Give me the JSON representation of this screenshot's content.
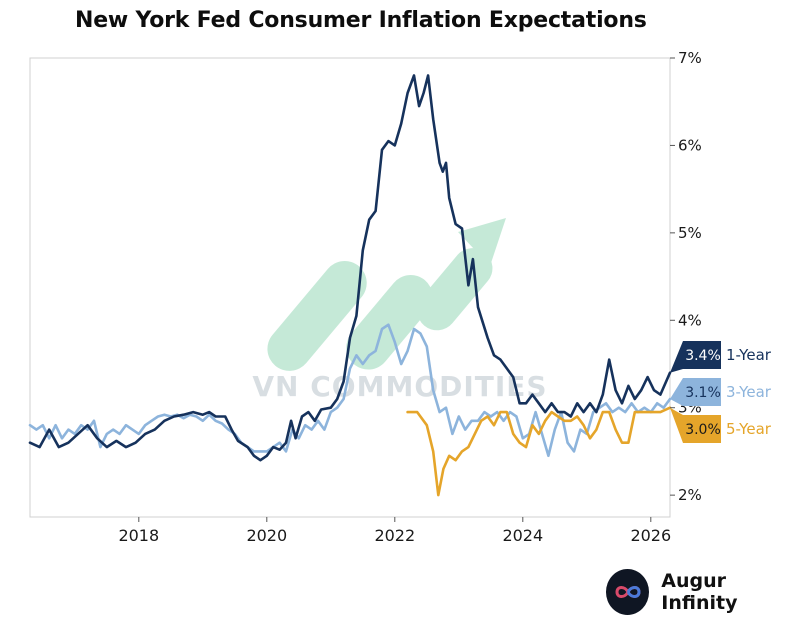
{
  "title": "New York Fed Consumer Inflation Expectations",
  "watermark": "VN COMMODITIES",
  "brand": {
    "name": "Augur Infinity",
    "logo_icon": "infinity-loop-icon"
  },
  "colors": {
    "one_year": "#16325c",
    "three_year": "#8db4dc",
    "five_year": "#e5a52a",
    "arrow": "#7fd0a8"
  },
  "chart_data": {
    "type": "line",
    "title": "New York Fed Consumer Inflation Expectations",
    "xlabel": "",
    "ylabel": "",
    "xlim": [
      2016.3,
      2026.3
    ],
    "ylim": [
      1.75,
      7.0
    ],
    "x_ticks": [
      2018,
      2020,
      2022,
      2024,
      2026
    ],
    "x_tick_labels": [
      "2018",
      "2020",
      "2022",
      "2024",
      "2026"
    ],
    "y_ticks": [
      2,
      3,
      4,
      5,
      6,
      7
    ],
    "y_tick_labels": [
      "2%",
      "3%",
      "4%",
      "5%",
      "6%",
      "7%"
    ],
    "y_axis_side": "right",
    "grid": false,
    "series": [
      {
        "name": "1-Year",
        "end_label": "3.4%",
        "color": "#16325c",
        "points": [
          [
            2016.3,
            2.6
          ],
          [
            2016.45,
            2.55
          ],
          [
            2016.6,
            2.75
          ],
          [
            2016.75,
            2.55
          ],
          [
            2016.9,
            2.6
          ],
          [
            2017.05,
            2.7
          ],
          [
            2017.2,
            2.8
          ],
          [
            2017.35,
            2.65
          ],
          [
            2017.5,
            2.55
          ],
          [
            2017.65,
            2.62
          ],
          [
            2017.8,
            2.55
          ],
          [
            2017.95,
            2.6
          ],
          [
            2018.1,
            2.7
          ],
          [
            2018.25,
            2.75
          ],
          [
            2018.4,
            2.85
          ],
          [
            2018.55,
            2.9
          ],
          [
            2018.7,
            2.92
          ],
          [
            2018.85,
            2.95
          ],
          [
            2019.0,
            2.92
          ],
          [
            2019.1,
            2.95
          ],
          [
            2019.2,
            2.9
          ],
          [
            2019.35,
            2.9
          ],
          [
            2019.45,
            2.75
          ],
          [
            2019.55,
            2.62
          ],
          [
            2019.7,
            2.55
          ],
          [
            2019.8,
            2.45
          ],
          [
            2019.9,
            2.4
          ],
          [
            2020.0,
            2.45
          ],
          [
            2020.1,
            2.55
          ],
          [
            2020.2,
            2.52
          ],
          [
            2020.3,
            2.6
          ],
          [
            2020.38,
            2.85
          ],
          [
            2020.45,
            2.65
          ],
          [
            2020.55,
            2.9
          ],
          [
            2020.65,
            2.95
          ],
          [
            2020.75,
            2.85
          ],
          [
            2020.85,
            2.98
          ],
          [
            2021.0,
            3.0
          ],
          [
            2021.1,
            3.1
          ],
          [
            2021.2,
            3.3
          ],
          [
            2021.3,
            3.8
          ],
          [
            2021.4,
            4.05
          ],
          [
            2021.5,
            4.8
          ],
          [
            2021.6,
            5.15
          ],
          [
            2021.7,
            5.25
          ],
          [
            2021.8,
            5.95
          ],
          [
            2021.9,
            6.05
          ],
          [
            2022.0,
            6.0
          ],
          [
            2022.1,
            6.25
          ],
          [
            2022.2,
            6.6
          ],
          [
            2022.3,
            6.8
          ],
          [
            2022.38,
            6.45
          ],
          [
            2022.45,
            6.6
          ],
          [
            2022.52,
            6.8
          ],
          [
            2022.6,
            6.3
          ],
          [
            2022.7,
            5.8
          ],
          [
            2022.75,
            5.7
          ],
          [
            2022.8,
            5.8
          ],
          [
            2022.85,
            5.4
          ],
          [
            2022.95,
            5.1
          ],
          [
            2023.05,
            5.05
          ],
          [
            2023.15,
            4.4
          ],
          [
            2023.22,
            4.7
          ],
          [
            2023.3,
            4.15
          ],
          [
            2023.45,
            3.8
          ],
          [
            2023.55,
            3.6
          ],
          [
            2023.65,
            3.55
          ],
          [
            2023.75,
            3.45
          ],
          [
            2023.85,
            3.35
          ],
          [
            2023.95,
            3.05
          ],
          [
            2024.05,
            3.05
          ],
          [
            2024.15,
            3.15
          ],
          [
            2024.25,
            3.05
          ],
          [
            2024.35,
            2.95
          ],
          [
            2024.45,
            3.05
          ],
          [
            2024.55,
            2.95
          ],
          [
            2024.65,
            2.95
          ],
          [
            2024.75,
            2.9
          ],
          [
            2024.85,
            3.05
          ],
          [
            2024.95,
            2.95
          ],
          [
            2025.05,
            3.05
          ],
          [
            2025.15,
            2.95
          ],
          [
            2025.25,
            3.15
          ],
          [
            2025.35,
            3.55
          ],
          [
            2025.45,
            3.2
          ],
          [
            2025.55,
            3.05
          ],
          [
            2025.65,
            3.25
          ],
          [
            2025.75,
            3.1
          ],
          [
            2025.85,
            3.2
          ],
          [
            2025.95,
            3.35
          ],
          [
            2026.05,
            3.2
          ],
          [
            2026.15,
            3.15
          ],
          [
            2026.3,
            3.4
          ]
        ]
      },
      {
        "name": "3-Year",
        "end_label": "3.1%",
        "color": "#8db4dc",
        "points": [
          [
            2016.3,
            2.8
          ],
          [
            2016.4,
            2.75
          ],
          [
            2016.5,
            2.8
          ],
          [
            2016.6,
            2.65
          ],
          [
            2016.7,
            2.8
          ],
          [
            2016.8,
            2.65
          ],
          [
            2016.9,
            2.75
          ],
          [
            2017.0,
            2.7
          ],
          [
            2017.1,
            2.8
          ],
          [
            2017.2,
            2.75
          ],
          [
            2017.3,
            2.85
          ],
          [
            2017.4,
            2.55
          ],
          [
            2017.5,
            2.7
          ],
          [
            2017.6,
            2.75
          ],
          [
            2017.7,
            2.7
          ],
          [
            2017.8,
            2.8
          ],
          [
            2017.9,
            2.75
          ],
          [
            2018.0,
            2.7
          ],
          [
            2018.1,
            2.8
          ],
          [
            2018.2,
            2.85
          ],
          [
            2018.3,
            2.9
          ],
          [
            2018.4,
            2.92
          ],
          [
            2018.5,
            2.9
          ],
          [
            2018.6,
            2.92
          ],
          [
            2018.7,
            2.88
          ],
          [
            2018.8,
            2.92
          ],
          [
            2018.9,
            2.9
          ],
          [
            2019.0,
            2.85
          ],
          [
            2019.1,
            2.92
          ],
          [
            2019.2,
            2.85
          ],
          [
            2019.3,
            2.82
          ],
          [
            2019.4,
            2.75
          ],
          [
            2019.5,
            2.7
          ],
          [
            2019.6,
            2.6
          ],
          [
            2019.7,
            2.55
          ],
          [
            2019.8,
            2.5
          ],
          [
            2019.9,
            2.5
          ],
          [
            2020.0,
            2.5
          ],
          [
            2020.1,
            2.55
          ],
          [
            2020.2,
            2.6
          ],
          [
            2020.3,
            2.5
          ],
          [
            2020.4,
            2.75
          ],
          [
            2020.5,
            2.65
          ],
          [
            2020.6,
            2.8
          ],
          [
            2020.7,
            2.75
          ],
          [
            2020.8,
            2.85
          ],
          [
            2020.9,
            2.75
          ],
          [
            2021.0,
            2.95
          ],
          [
            2021.1,
            3.0
          ],
          [
            2021.2,
            3.1
          ],
          [
            2021.3,
            3.45
          ],
          [
            2021.4,
            3.6
          ],
          [
            2021.5,
            3.5
          ],
          [
            2021.6,
            3.6
          ],
          [
            2021.7,
            3.65
          ],
          [
            2021.8,
            3.9
          ],
          [
            2021.9,
            3.95
          ],
          [
            2022.0,
            3.75
          ],
          [
            2022.1,
            3.5
          ],
          [
            2022.2,
            3.65
          ],
          [
            2022.3,
            3.9
          ],
          [
            2022.4,
            3.85
          ],
          [
            2022.5,
            3.7
          ],
          [
            2022.6,
            3.2
          ],
          [
            2022.7,
            2.95
          ],
          [
            2022.8,
            3.0
          ],
          [
            2022.9,
            2.7
          ],
          [
            2023.0,
            2.9
          ],
          [
            2023.1,
            2.75
          ],
          [
            2023.2,
            2.85
          ],
          [
            2023.3,
            2.85
          ],
          [
            2023.4,
            2.95
          ],
          [
            2023.5,
            2.9
          ],
          [
            2023.6,
            2.95
          ],
          [
            2023.7,
            2.85
          ],
          [
            2023.8,
            2.95
          ],
          [
            2023.9,
            2.9
          ],
          [
            2024.0,
            2.65
          ],
          [
            2024.1,
            2.7
          ],
          [
            2024.2,
            2.95
          ],
          [
            2024.3,
            2.7
          ],
          [
            2024.4,
            2.45
          ],
          [
            2024.5,
            2.75
          ],
          [
            2024.6,
            2.95
          ],
          [
            2024.7,
            2.6
          ],
          [
            2024.8,
            2.5
          ],
          [
            2024.9,
            2.75
          ],
          [
            2025.0,
            2.7
          ],
          [
            2025.1,
            2.95
          ],
          [
            2025.2,
            3.0
          ],
          [
            2025.3,
            3.05
          ],
          [
            2025.4,
            2.95
          ],
          [
            2025.5,
            3.0
          ],
          [
            2025.6,
            2.95
          ],
          [
            2025.7,
            3.05
          ],
          [
            2025.8,
            2.95
          ],
          [
            2025.9,
            3.0
          ],
          [
            2026.0,
            2.95
          ],
          [
            2026.1,
            3.05
          ],
          [
            2026.2,
            3.0
          ],
          [
            2026.3,
            3.1
          ]
        ]
      },
      {
        "name": "5-Year",
        "end_label": "3.0%",
        "color": "#e5a52a",
        "points": [
          [
            2022.2,
            2.95
          ],
          [
            2022.35,
            2.95
          ],
          [
            2022.5,
            2.8
          ],
          [
            2022.6,
            2.5
          ],
          [
            2022.68,
            2.0
          ],
          [
            2022.76,
            2.3
          ],
          [
            2022.85,
            2.45
          ],
          [
            2022.95,
            2.4
          ],
          [
            2023.05,
            2.5
          ],
          [
            2023.15,
            2.55
          ],
          [
            2023.25,
            2.7
          ],
          [
            2023.35,
            2.85
          ],
          [
            2023.45,
            2.9
          ],
          [
            2023.55,
            2.8
          ],
          [
            2023.65,
            2.95
          ],
          [
            2023.75,
            2.95
          ],
          [
            2023.85,
            2.7
          ],
          [
            2023.95,
            2.6
          ],
          [
            2024.05,
            2.55
          ],
          [
            2024.15,
            2.8
          ],
          [
            2024.25,
            2.7
          ],
          [
            2024.35,
            2.85
          ],
          [
            2024.45,
            2.95
          ],
          [
            2024.55,
            2.9
          ],
          [
            2024.65,
            2.85
          ],
          [
            2024.75,
            2.85
          ],
          [
            2024.85,
            2.9
          ],
          [
            2024.95,
            2.8
          ],
          [
            2025.05,
            2.65
          ],
          [
            2025.15,
            2.75
          ],
          [
            2025.25,
            2.95
          ],
          [
            2025.35,
            2.95
          ],
          [
            2025.45,
            2.75
          ],
          [
            2025.55,
            2.6
          ],
          [
            2025.65,
            2.6
          ],
          [
            2025.75,
            2.95
          ],
          [
            2025.85,
            2.95
          ],
          [
            2025.95,
            2.95
          ],
          [
            2026.05,
            2.95
          ],
          [
            2026.15,
            2.95
          ],
          [
            2026.3,
            3.0
          ]
        ]
      }
    ]
  }
}
